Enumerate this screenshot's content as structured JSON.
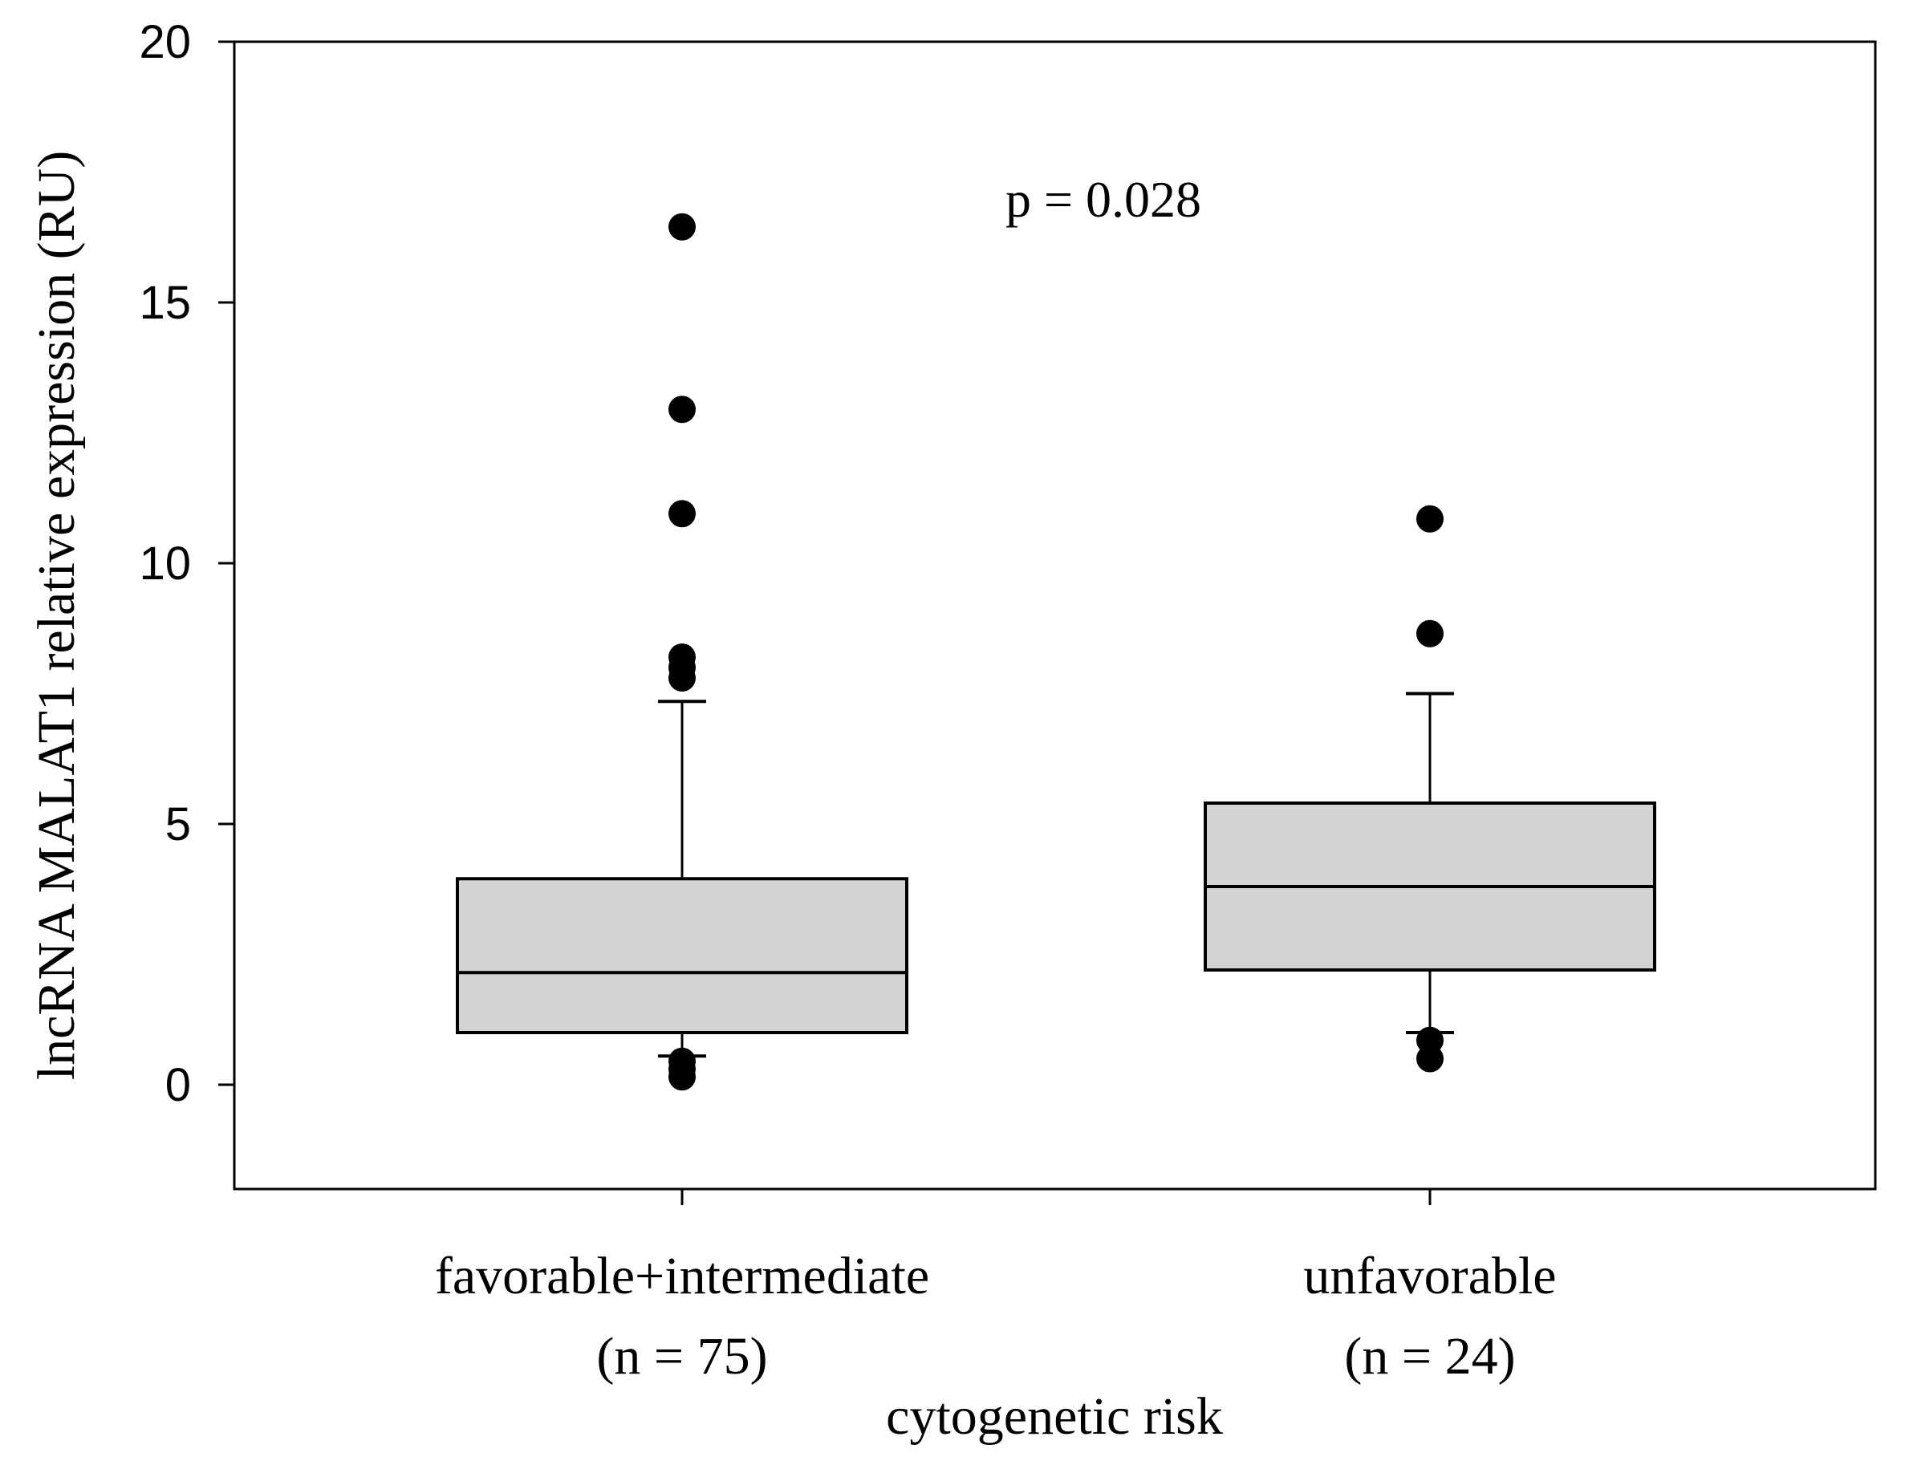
{
  "chart_data": {
    "type": "box",
    "ylabel": "lncRNA MALAT1 relative expression (RU)",
    "xlabel": "cytogenetic risk",
    "ylim": [
      -2,
      20
    ],
    "yticks": [
      0,
      5,
      10,
      15,
      20
    ],
    "annotation": "p = 0.028",
    "groups": [
      {
        "label": "favorable+intermediate",
        "n_label": "(n = 75)",
        "q1": 1.0,
        "median": 2.15,
        "q3": 3.95,
        "whisker_low": 0.55,
        "whisker_high": 7.35,
        "outliers": [
          16.45,
          12.95,
          10.95,
          8.2,
          8.0,
          7.8,
          0.45,
          0.3,
          0.15
        ]
      },
      {
        "label": "unfavorable",
        "n_label": "(n = 24)",
        "q1": 2.2,
        "median": 3.8,
        "q3": 5.4,
        "whisker_low": 1.0,
        "whisker_high": 7.5,
        "outliers": [
          10.85,
          8.65,
          0.85,
          0.5
        ]
      }
    ],
    "colors": {
      "box_fill": "#d3d3d3",
      "stroke": "#000000",
      "outlier": "#000000"
    }
  }
}
